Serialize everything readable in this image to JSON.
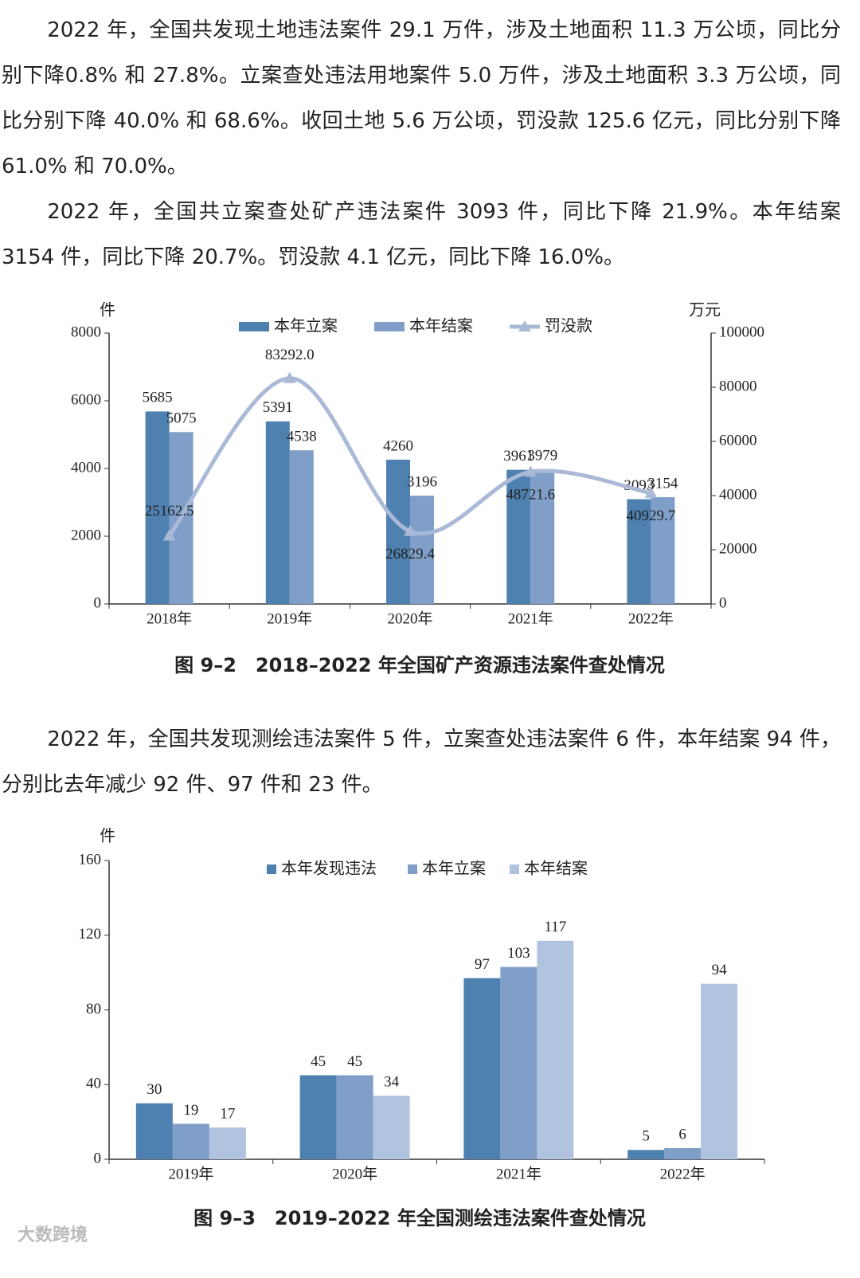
{
  "paragraphs": [
    "2022 年，全国共发现土地违法案件 29.1 万件，涉及土地面积 11.3 万公顷，同比分别下降0.8% 和 27.8%。立案查处违法用地案件 5.0 万件，涉及土地面积 3.3 万公顷，同比分别下降 40.0% 和 68.6%。收回土地 5.6 万公顷，罚没款 125.6 亿元，同比分别下降 61.0% 和 70.0%。",
    "2022 年，全国共立案查处矿产违法案件 3093 件，同比下降 21.9%。本年结案 3154 件，同比下降 20.7%。罚没款 4.1 亿元，同比下降 16.0%。",
    "2022 年，全国共发现测绘违法案件 5 件，立案查处违法案件 6 件，本年结案 94 件，分别比去年减少 92 件、97 件和 23 件。"
  ],
  "watermark": "大数跨境",
  "chart_data": [
    {
      "type": "bar",
      "title": "图 9–2　2018–2022 年全国矿产资源违法案件查处情况",
      "y_label": "件",
      "y2_label": "万元",
      "categories": [
        "2018年",
        "2019年",
        "2020年",
        "2021年",
        "2022年"
      ],
      "series": [
        {
          "name": "本年立案",
          "color": "#4f81b0",
          "values": [
            5685,
            5391,
            4260,
            3961,
            3093
          ]
        },
        {
          "name": "本年结案",
          "color": "#7f9fc8",
          "values": [
            5075,
            4538,
            3196,
            3979,
            3154
          ]
        },
        {
          "name": "罚没款",
          "type": "line",
          "axis": "y2",
          "color": "#a9b9d6",
          "values": [
            25162.5,
            83292.0,
            26829.4,
            48721.6,
            40929.7
          ],
          "value_labels": [
            "25162.5",
            "83292.0",
            "26829.4",
            "48721.6",
            "40929.7"
          ]
        }
      ],
      "ylim": [
        0,
        8000
      ],
      "yticks": [
        0,
        2000,
        4000,
        6000,
        8000
      ],
      "y2lim": [
        0,
        100000
      ],
      "y2ticks": [
        0,
        20000,
        40000,
        60000,
        80000,
        100000
      ],
      "grid": false
    },
    {
      "type": "bar",
      "title": "图 9–3　2019–2022 年全国测绘违法案件查处情况",
      "y_label": "件",
      "categories": [
        "2019年",
        "2020年",
        "2021年",
        "2022年"
      ],
      "series": [
        {
          "name": "本年发现违法",
          "color": "#4f81b0",
          "values": [
            30,
            45,
            97,
            5
          ]
        },
        {
          "name": "本年立案",
          "color": "#7f9fc8",
          "values": [
            19,
            45,
            103,
            6
          ]
        },
        {
          "name": "本年结案",
          "color": "#b0c3df",
          "values": [
            17,
            34,
            117,
            94
          ]
        }
      ],
      "ylim": [
        0,
        160
      ],
      "yticks": [
        0,
        40,
        80,
        120,
        160
      ],
      "grid": false
    }
  ]
}
